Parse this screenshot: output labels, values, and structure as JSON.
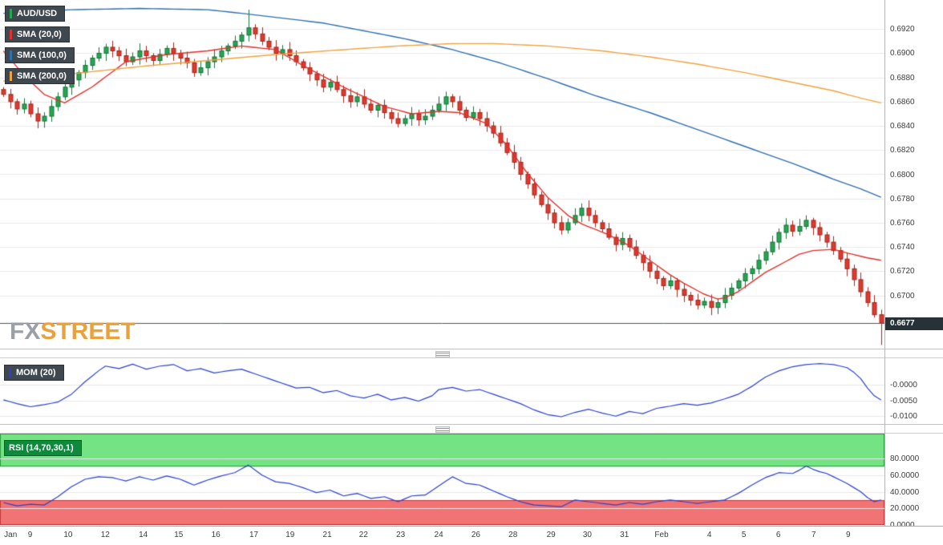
{
  "watermark": {
    "fx": "FX",
    "street": "STREET"
  },
  "legend": {
    "items": [
      {
        "label": "AUD/USD",
        "accent": "#25a750"
      },
      {
        "label": "SMA (20,0)",
        "accent": "#e0312b"
      },
      {
        "label": "SMA (100,0)",
        "accent": "#2e6fae"
      },
      {
        "label": "SMA (200,0)",
        "accent": "#f0a23c"
      }
    ]
  },
  "colors": {
    "up": "#25a750",
    "up_border": "#15713a",
    "down": "#e0392d",
    "down_border": "#9f271c",
    "grid": "#e8e8e8",
    "price_line": "#455a64"
  },
  "x_axis": {
    "labels": [
      {
        "t": "Jan",
        "f": 0.012
      },
      {
        "t": "9",
        "f": 0.034
      },
      {
        "t": "10",
        "f": 0.077
      },
      {
        "t": "12",
        "f": 0.119
      },
      {
        "t": "14",
        "f": 0.162
      },
      {
        "t": "15",
        "f": 0.202
      },
      {
        "t": "16",
        "f": 0.244
      },
      {
        "t": "17",
        "f": 0.287
      },
      {
        "t": "19",
        "f": 0.328
      },
      {
        "t": "21",
        "f": 0.37
      },
      {
        "t": "22",
        "f": 0.411
      },
      {
        "t": "23",
        "f": 0.453
      },
      {
        "t": "24",
        "f": 0.496
      },
      {
        "t": "26",
        "f": 0.538
      },
      {
        "t": "28",
        "f": 0.58
      },
      {
        "t": "29",
        "f": 0.623
      },
      {
        "t": "30",
        "f": 0.664
      },
      {
        "t": "31",
        "f": 0.706
      },
      {
        "t": "Feb",
        "f": 0.748
      },
      {
        "t": "4",
        "f": 0.802
      },
      {
        "t": "5",
        "f": 0.841
      },
      {
        "t": "6",
        "f": 0.88
      },
      {
        "t": "7",
        "f": 0.92
      },
      {
        "t": "9",
        "f": 0.959
      }
    ]
  },
  "chart_data": [
    {
      "type": "candlestick",
      "title": "AUD/USD",
      "y_ticks": [
        "0.6920",
        "0.6900",
        "0.6880",
        "0.6860",
        "0.6840",
        "0.6820",
        "0.6800",
        "0.6780",
        "0.6760",
        "0.6740",
        "0.6720",
        "0.6700"
      ],
      "y_domain": [
        0.6656,
        0.6944
      ],
      "last_price": 0.6677,
      "last_price_label": "0.6677",
      "first_open": 0.687,
      "closes": [
        0.6866,
        0.686,
        0.6854,
        0.6858,
        0.685,
        0.6844,
        0.6848,
        0.6856,
        0.6864,
        0.6872,
        0.6878,
        0.6884,
        0.689,
        0.6896,
        0.69,
        0.6905,
        0.6902,
        0.6898,
        0.6893,
        0.6897,
        0.6902,
        0.6898,
        0.6894,
        0.6899,
        0.6904,
        0.69,
        0.6896,
        0.6892,
        0.6884,
        0.6888,
        0.6893,
        0.6897,
        0.6902,
        0.6906,
        0.691,
        0.6915,
        0.6921,
        0.6916,
        0.691,
        0.6905,
        0.69,
        0.6903,
        0.6898,
        0.6893,
        0.6888,
        0.6883,
        0.6878,
        0.6872,
        0.6876,
        0.687,
        0.6865,
        0.686,
        0.6864,
        0.6858,
        0.6853,
        0.6857,
        0.6851,
        0.6846,
        0.6842,
        0.6846,
        0.685,
        0.6845,
        0.6848,
        0.6853,
        0.6858,
        0.6864,
        0.686,
        0.6853,
        0.6847,
        0.6851,
        0.6846,
        0.684,
        0.6834,
        0.6826,
        0.6818,
        0.681,
        0.68,
        0.6792,
        0.6783,
        0.6775,
        0.6768,
        0.676,
        0.6754,
        0.676,
        0.6766,
        0.6772,
        0.6766,
        0.676,
        0.6755,
        0.6748,
        0.6742,
        0.6747,
        0.674,
        0.6733,
        0.6727,
        0.672,
        0.6714,
        0.6708,
        0.6712,
        0.6705,
        0.67,
        0.6696,
        0.6692,
        0.6695,
        0.669,
        0.6694,
        0.67,
        0.6706,
        0.6712,
        0.6718,
        0.6722,
        0.6729,
        0.6736,
        0.6744,
        0.6752,
        0.6758,
        0.6753,
        0.6757,
        0.6762,
        0.6756,
        0.675,
        0.6744,
        0.6737,
        0.673,
        0.6722,
        0.6713,
        0.6703,
        0.6694,
        0.6684,
        0.6677
      ],
      "wick_overrides": {
        "5": {
          "l": 0.6838
        },
        "36": {
          "h": 0.6936
        },
        "129": {
          "l": 0.6659
        }
      },
      "series": [
        {
          "name": "SMA (20,0)",
          "color": "#e0312b",
          "keypoints": [
            [
              0,
              0.6902
            ],
            [
              3,
              0.6882
            ],
            [
              6,
              0.6866
            ],
            [
              9,
              0.6859
            ],
            [
              13,
              0.6872
            ],
            [
              18,
              0.6893
            ],
            [
              24,
              0.6899
            ],
            [
              30,
              0.6902
            ],
            [
              35,
              0.6906
            ],
            [
              40,
              0.6903
            ],
            [
              44,
              0.689
            ],
            [
              50,
              0.6872
            ],
            [
              56,
              0.6856
            ],
            [
              60,
              0.685
            ],
            [
              64,
              0.6852
            ],
            [
              67,
              0.6851
            ],
            [
              71,
              0.6842
            ],
            [
              74,
              0.6824
            ],
            [
              77,
              0.6801
            ],
            [
              80,
              0.6781
            ],
            [
              83,
              0.6766
            ],
            [
              85,
              0.6759
            ],
            [
              89,
              0.675
            ],
            [
              92,
              0.6741
            ],
            [
              95,
              0.6729
            ],
            [
              98,
              0.6717
            ],
            [
              100,
              0.671
            ],
            [
              103,
              0.6701
            ],
            [
              105,
              0.6697
            ],
            [
              106,
              0.6698
            ],
            [
              108,
              0.6703
            ],
            [
              110,
              0.6711
            ],
            [
              112,
              0.6719
            ],
            [
              115,
              0.6728
            ],
            [
              117,
              0.6734
            ],
            [
              119,
              0.6737
            ],
            [
              122,
              0.6738
            ],
            [
              124,
              0.6735
            ],
            [
              127,
              0.6731
            ],
            [
              129,
              0.6729
            ]
          ]
        },
        {
          "name": "SMA (100,0)",
          "color": "#2e6fae",
          "keypoints": [
            [
              0,
              0.6933
            ],
            [
              10,
              0.6936
            ],
            [
              20,
              0.6937
            ],
            [
              30,
              0.6936
            ],
            [
              35,
              0.6933
            ],
            [
              47,
              0.6925
            ],
            [
              59,
              0.6912
            ],
            [
              66,
              0.6903
            ],
            [
              73,
              0.6892
            ],
            [
              80,
              0.6879
            ],
            [
              87,
              0.6865
            ],
            [
              95,
              0.6851
            ],
            [
              102,
              0.6837
            ],
            [
              109,
              0.6823
            ],
            [
              116,
              0.6809
            ],
            [
              122,
              0.6796
            ],
            [
              126,
              0.6788
            ],
            [
              129,
              0.6781
            ]
          ]
        },
        {
          "name": "SMA (200,0)",
          "color": "#f0a23c",
          "keypoints": [
            [
              0,
              0.6877
            ],
            [
              10,
              0.6883
            ],
            [
              20,
              0.6889
            ],
            [
              30,
              0.6894
            ],
            [
              40,
              0.6899
            ],
            [
              50,
              0.6903
            ],
            [
              58,
              0.6906
            ],
            [
              66,
              0.6908
            ],
            [
              72,
              0.6908
            ],
            [
              80,
              0.6906
            ],
            [
              88,
              0.6902
            ],
            [
              95,
              0.6897
            ],
            [
              102,
              0.6891
            ],
            [
              109,
              0.6884
            ],
            [
              116,
              0.6876
            ],
            [
              122,
              0.6869
            ],
            [
              126,
              0.6863
            ],
            [
              129,
              0.6859
            ]
          ]
        }
      ]
    },
    {
      "type": "line",
      "title": "MOM (20)",
      "color": "#2a41cf",
      "y_ticks": [
        "-0.0000",
        "-0.0050",
        "-0.0100"
      ],
      "y_domain": [
        -0.0125,
        0.0085
      ],
      "keypoints": [
        [
          0,
          -0.0048
        ],
        [
          2,
          -0.006
        ],
        [
          4,
          -0.007
        ],
        [
          6,
          -0.0063
        ],
        [
          8,
          -0.0055
        ],
        [
          10,
          -0.003
        ],
        [
          12,
          0.001
        ],
        [
          14,
          0.0045
        ],
        [
          15,
          0.006
        ],
        [
          17,
          0.0052
        ],
        [
          19,
          0.0066
        ],
        [
          21,
          0.005
        ],
        [
          23,
          0.006
        ],
        [
          25,
          0.0065
        ],
        [
          27,
          0.0045
        ],
        [
          29,
          0.0052
        ],
        [
          31,
          0.0038
        ],
        [
          33,
          0.0045
        ],
        [
          35,
          0.005
        ],
        [
          37,
          0.0035
        ],
        [
          39,
          0.002
        ],
        [
          41,
          0.0005
        ],
        [
          43,
          -0.001
        ],
        [
          45,
          -0.0008
        ],
        [
          47,
          -0.0025
        ],
        [
          49,
          -0.0018
        ],
        [
          51,
          -0.0035
        ],
        [
          53,
          -0.0042
        ],
        [
          55,
          -0.003
        ],
        [
          57,
          -0.0048
        ],
        [
          59,
          -0.004
        ],
        [
          61,
          -0.0052
        ],
        [
          63,
          -0.0035
        ],
        [
          64,
          -0.0015
        ],
        [
          66,
          -0.0008
        ],
        [
          68,
          -0.002
        ],
        [
          70,
          -0.0015
        ],
        [
          72,
          -0.003
        ],
        [
          74,
          -0.0045
        ],
        [
          76,
          -0.006
        ],
        [
          78,
          -0.008
        ],
        [
          80,
          -0.0095
        ],
        [
          82,
          -0.0102
        ],
        [
          84,
          -0.0088
        ],
        [
          86,
          -0.0078
        ],
        [
          88,
          -0.009
        ],
        [
          90,
          -0.01
        ],
        [
          92,
          -0.0085
        ],
        [
          94,
          -0.0092
        ],
        [
          96,
          -0.0075
        ],
        [
          98,
          -0.0068
        ],
        [
          100,
          -0.006
        ],
        [
          102,
          -0.0065
        ],
        [
          104,
          -0.0058
        ],
        [
          106,
          -0.0045
        ],
        [
          108,
          -0.003
        ],
        [
          110,
          -0.0005
        ],
        [
          112,
          0.0025
        ],
        [
          114,
          0.0045
        ],
        [
          116,
          0.0058
        ],
        [
          118,
          0.0065
        ],
        [
          120,
          0.0068
        ],
        [
          122,
          0.0065
        ],
        [
          124,
          0.0055
        ],
        [
          125,
          0.004
        ],
        [
          126,
          0.002
        ],
        [
          127,
          -0.001
        ],
        [
          128,
          -0.0035
        ],
        [
          129,
          -0.0048
        ]
      ]
    },
    {
      "type": "line",
      "title": "RSI (14,70,30,1)",
      "color": "#2a41cf",
      "badge_bg": "#0f8a3d",
      "y_ticks": [
        "80.0000",
        "60.0000",
        "40.0000",
        "20.0000",
        "0.0000"
      ],
      "y_domain": [
        0,
        110
      ],
      "overbought": 70,
      "oversold": 30,
      "bands": [
        {
          "from": 70,
          "to": 110,
          "fill": "#74e383",
          "stroke": "#2f9e44"
        },
        {
          "from": 0,
          "to": 30,
          "fill": "#f17373",
          "stroke": "#c23b3b"
        }
      ],
      "keypoints": [
        [
          0,
          27
        ],
        [
          2,
          23
        ],
        [
          4,
          25
        ],
        [
          6,
          24
        ],
        [
          8,
          34
        ],
        [
          10,
          46
        ],
        [
          12,
          55
        ],
        [
          14,
          58
        ],
        [
          16,
          57
        ],
        [
          18,
          53
        ],
        [
          20,
          58
        ],
        [
          22,
          54
        ],
        [
          24,
          59
        ],
        [
          26,
          55
        ],
        [
          28,
          48
        ],
        [
          30,
          54
        ],
        [
          32,
          59
        ],
        [
          34,
          63
        ],
        [
          36,
          72
        ],
        [
          38,
          60
        ],
        [
          40,
          52
        ],
        [
          42,
          50
        ],
        [
          44,
          45
        ],
        [
          46,
          39
        ],
        [
          48,
          42
        ],
        [
          50,
          35
        ],
        [
          52,
          38
        ],
        [
          54,
          32
        ],
        [
          56,
          34
        ],
        [
          58,
          28
        ],
        [
          60,
          35
        ],
        [
          62,
          36
        ],
        [
          64,
          47
        ],
        [
          66,
          58
        ],
        [
          68,
          50
        ],
        [
          70,
          48
        ],
        [
          72,
          41
        ],
        [
          74,
          34
        ],
        [
          76,
          28
        ],
        [
          78,
          24
        ],
        [
          80,
          23
        ],
        [
          82,
          22
        ],
        [
          84,
          30
        ],
        [
          86,
          28
        ],
        [
          88,
          26
        ],
        [
          90,
          24
        ],
        [
          92,
          27
        ],
        [
          94,
          25
        ],
        [
          96,
          28
        ],
        [
          98,
          30
        ],
        [
          100,
          28
        ],
        [
          102,
          26
        ],
        [
          104,
          28
        ],
        [
          106,
          30
        ],
        [
          108,
          38
        ],
        [
          110,
          48
        ],
        [
          112,
          57
        ],
        [
          114,
          63
        ],
        [
          116,
          62
        ],
        [
          117,
          66
        ],
        [
          118,
          71
        ],
        [
          119,
          67
        ],
        [
          120,
          64
        ],
        [
          121,
          62
        ],
        [
          122,
          58
        ],
        [
          124,
          50
        ],
        [
          126,
          40
        ],
        [
          127,
          33
        ],
        [
          128,
          28
        ],
        [
          129,
          30
        ]
      ]
    }
  ]
}
